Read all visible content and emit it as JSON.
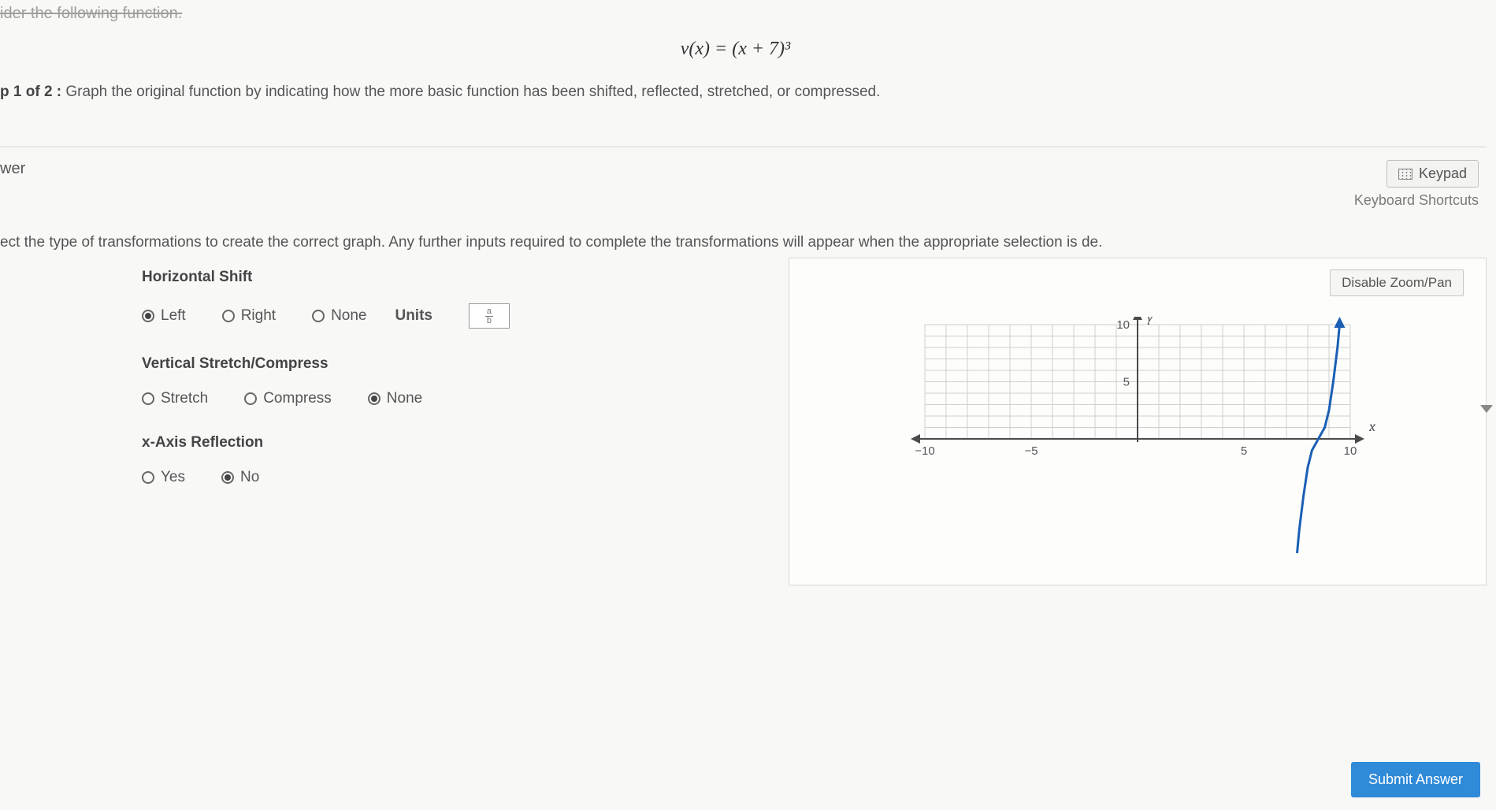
{
  "header": {
    "cutoff_line": "ider the following function.",
    "equation": "v(x) = (x + 7)³",
    "step_prefix": "p 1 of 2 :",
    "step_text": "Graph the original function by indicating how the more basic function has been shifted, reflected, stretched, or compressed."
  },
  "answer": {
    "wer_label": "wer",
    "keypad_label": "Keypad",
    "shortcuts_label": "Keyboard Shortcuts",
    "instruction": "ect the type of transformations to create the correct graph. Any further inputs required to complete the transformations will appear when the appropriate selection is de."
  },
  "groups": {
    "hshift": {
      "title": "Horizontal Shift",
      "left": "Left",
      "right": "Right",
      "none": "None",
      "selected": "left",
      "units_label": "Units"
    },
    "stretch": {
      "title": "Vertical Stretch/Compress",
      "stretch": "Stretch",
      "compress": "Compress",
      "none": "None",
      "selected": "none"
    },
    "xreflect": {
      "title": "x-Axis Reflection",
      "yes": "Yes",
      "no": "No",
      "selected": "no"
    }
  },
  "graph": {
    "disable_label": "Disable Zoom/Pan",
    "xmin": -10,
    "xmax": 10,
    "ymin": -10,
    "ymax": 10,
    "xticks": [
      -10,
      -5,
      5,
      10
    ],
    "yticks": [
      5,
      10
    ],
    "xlabel": "x",
    "ylabel": "y",
    "grid_color": "#cfcfce",
    "axis_color": "#4a4a4a",
    "curve_color": "#1a5fb4",
    "curve_points": [
      [
        7.5,
        -10
      ],
      [
        7.6,
        -8
      ],
      [
        7.8,
        -5
      ],
      [
        8.0,
        -2.5
      ],
      [
        8.2,
        -1.0
      ],
      [
        8.5,
        0
      ],
      [
        8.8,
        1.0
      ],
      [
        9.0,
        2.5
      ],
      [
        9.2,
        5
      ],
      [
        9.4,
        8
      ],
      [
        9.5,
        10
      ]
    ]
  },
  "submit_label": "Submit Answer"
}
